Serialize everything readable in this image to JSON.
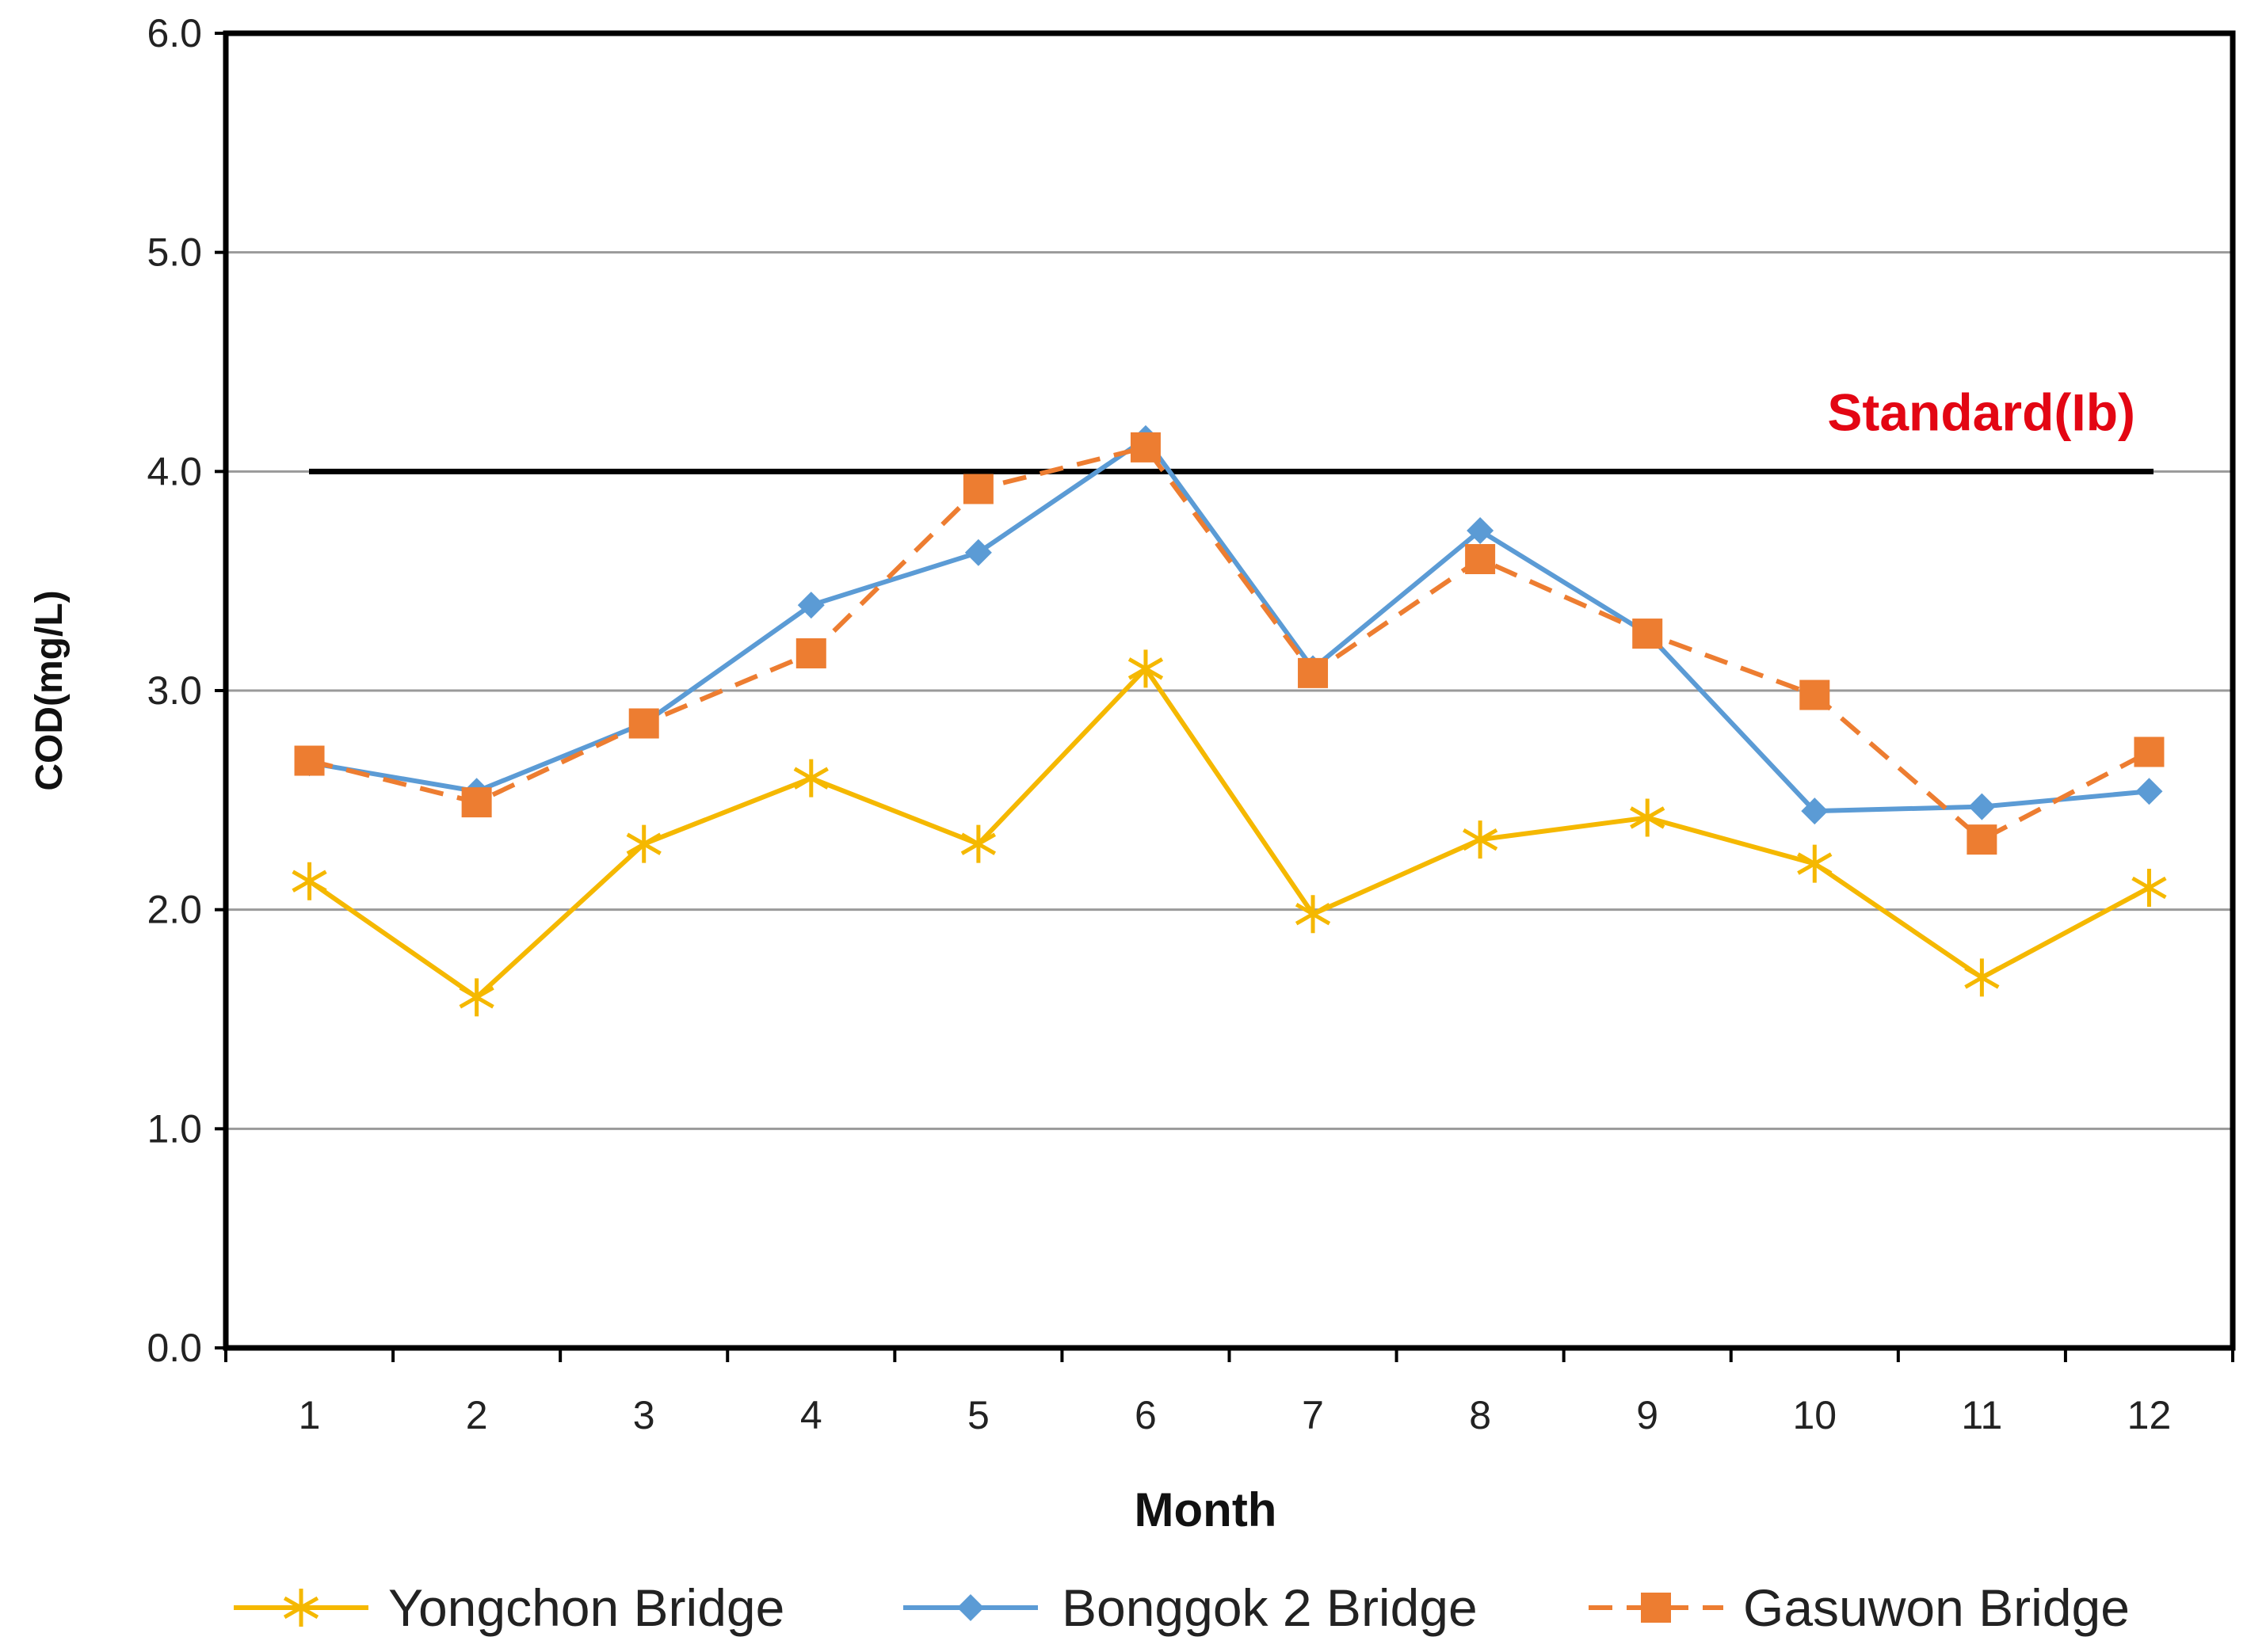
{
  "chart_data": {
    "type": "line",
    "title": "",
    "xlabel": "Month",
    "ylabel": "COD(mg/L)",
    "ylim": [
      0,
      6
    ],
    "y_ticks": [
      "0.0",
      "1.0",
      "2.0",
      "3.0",
      "4.0",
      "5.0",
      "6.0"
    ],
    "categories": [
      "1",
      "2",
      "3",
      "4",
      "5",
      "6",
      "7",
      "8",
      "9",
      "10",
      "11",
      "12"
    ],
    "grid": true,
    "legend_position": "bottom",
    "series": [
      {
        "name": "Yongchon Bridge",
        "color": "#f5b800",
        "marker": "star",
        "dash": "solid",
        "values": [
          2.13,
          1.6,
          2.3,
          2.6,
          2.3,
          3.1,
          1.98,
          2.32,
          2.42,
          2.21,
          1.69,
          2.1
        ]
      },
      {
        "name": "Bonggok 2 Bridge",
        "color": "#5b9bd5",
        "marker": "diamond",
        "dash": "solid",
        "values": [
          2.67,
          2.54,
          2.85,
          3.39,
          3.63,
          4.15,
          3.1,
          3.73,
          3.26,
          2.45,
          2.47,
          2.54
        ]
      },
      {
        "name": "Gasuwon Bridge",
        "color": "#ed7d31",
        "marker": "square",
        "dash": "dashed",
        "values": [
          2.68,
          2.49,
          2.85,
          3.17,
          3.92,
          4.11,
          3.08,
          3.6,
          3.26,
          2.98,
          2.32,
          2.72
        ]
      }
    ],
    "reference_line": {
      "label": "Standard(Ib)",
      "value": 4.0,
      "line_color": "#000000",
      "label_color": "#e30613"
    }
  }
}
